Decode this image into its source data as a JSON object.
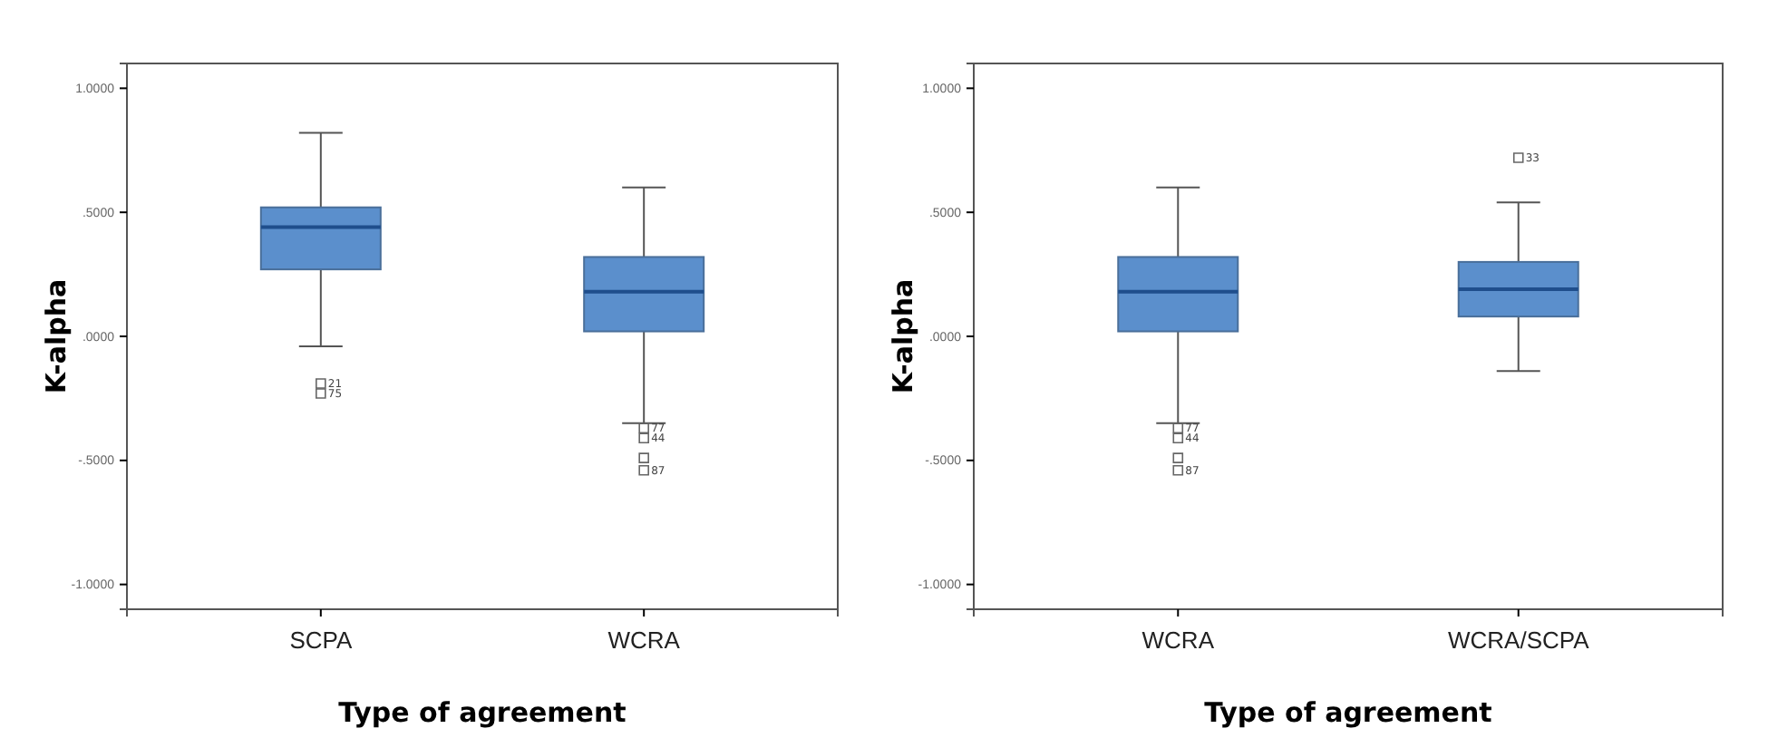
{
  "chart_data": [
    {
      "type": "box",
      "xlabel": "Type of agreement",
      "ylabel": "K-alpha",
      "categories": [
        "SCPA",
        "WCRA"
      ],
      "color": "#5b8fcc",
      "marker": "square",
      "ylim": [
        -1.1,
        1.1
      ],
      "yticks": [
        {
          "value": -1,
          "label": "-1.0000"
        },
        {
          "value": -0.5,
          "label": "-.5000"
        },
        {
          "value": 0,
          "label": ".0000"
        },
        {
          "value": 0.5,
          "label": ".5000"
        },
        {
          "value": 1,
          "label": "1.0000"
        }
      ],
      "boxes": [
        {
          "low": -0.04,
          "q1": 0.27,
          "median": 0.44,
          "q3": 0.52,
          "high": 0.82
        },
        {
          "low": -0.35,
          "q1": 0.02,
          "median": 0.18,
          "q3": 0.32,
          "high": 0.6
        }
      ],
      "series": [
        {
          "type": "scatter",
          "color": "#666666",
          "x": [
            "SCPA",
            "SCPA",
            "WCRA",
            "WCRA",
            "WCRA",
            "WCRA"
          ],
          "values": [
            -0.19,
            -0.23,
            -0.37,
            -0.41,
            -0.49,
            -0.54
          ]
        }
      ],
      "annotations": [
        {
          "text": "21",
          "x": "SCPA",
          "y": -0.19
        },
        {
          "text": "75",
          "x": "SCPA",
          "y": -0.23
        },
        {
          "text": "77",
          "x": "WCRA",
          "y": -0.37
        },
        {
          "text": "44",
          "x": "WCRA",
          "y": -0.41
        },
        {
          "text": "87",
          "x": "WCRA",
          "y": -0.54
        }
      ]
    },
    {
      "type": "box",
      "xlabel": "Type of agreement",
      "ylabel": "K-alpha",
      "categories": [
        "WCRA",
        "WCRA/SCPA"
      ],
      "color": "#5b8fcc",
      "marker": "square",
      "ylim": [
        -1.1,
        1.1
      ],
      "yticks": [
        {
          "value": -1,
          "label": "-1.0000"
        },
        {
          "value": -0.5,
          "label": "-.5000"
        },
        {
          "value": 0,
          "label": ".0000"
        },
        {
          "value": 0.5,
          "label": ".5000"
        },
        {
          "value": 1,
          "label": "1.0000"
        }
      ],
      "boxes": [
        {
          "low": -0.35,
          "q1": 0.02,
          "median": 0.18,
          "q3": 0.32,
          "high": 0.6
        },
        {
          "low": -0.14,
          "q1": 0.08,
          "median": 0.19,
          "q3": 0.3,
          "high": 0.54
        }
      ],
      "series": [
        {
          "type": "scatter",
          "color": "#666666",
          "x": [
            "WCRA",
            "WCRA",
            "WCRA",
            "WCRA",
            "WCRA/SCPA"
          ],
          "values": [
            -0.37,
            -0.41,
            -0.49,
            -0.54,
            0.72
          ]
        }
      ],
      "annotations": [
        {
          "text": "77",
          "x": "WCRA",
          "y": -0.37
        },
        {
          "text": "44",
          "x": "WCRA",
          "y": -0.41
        },
        {
          "text": "87",
          "x": "WCRA",
          "y": -0.54
        },
        {
          "text": "33",
          "x": "WCRA/SCPA",
          "y": 0.72
        }
      ]
    }
  ]
}
